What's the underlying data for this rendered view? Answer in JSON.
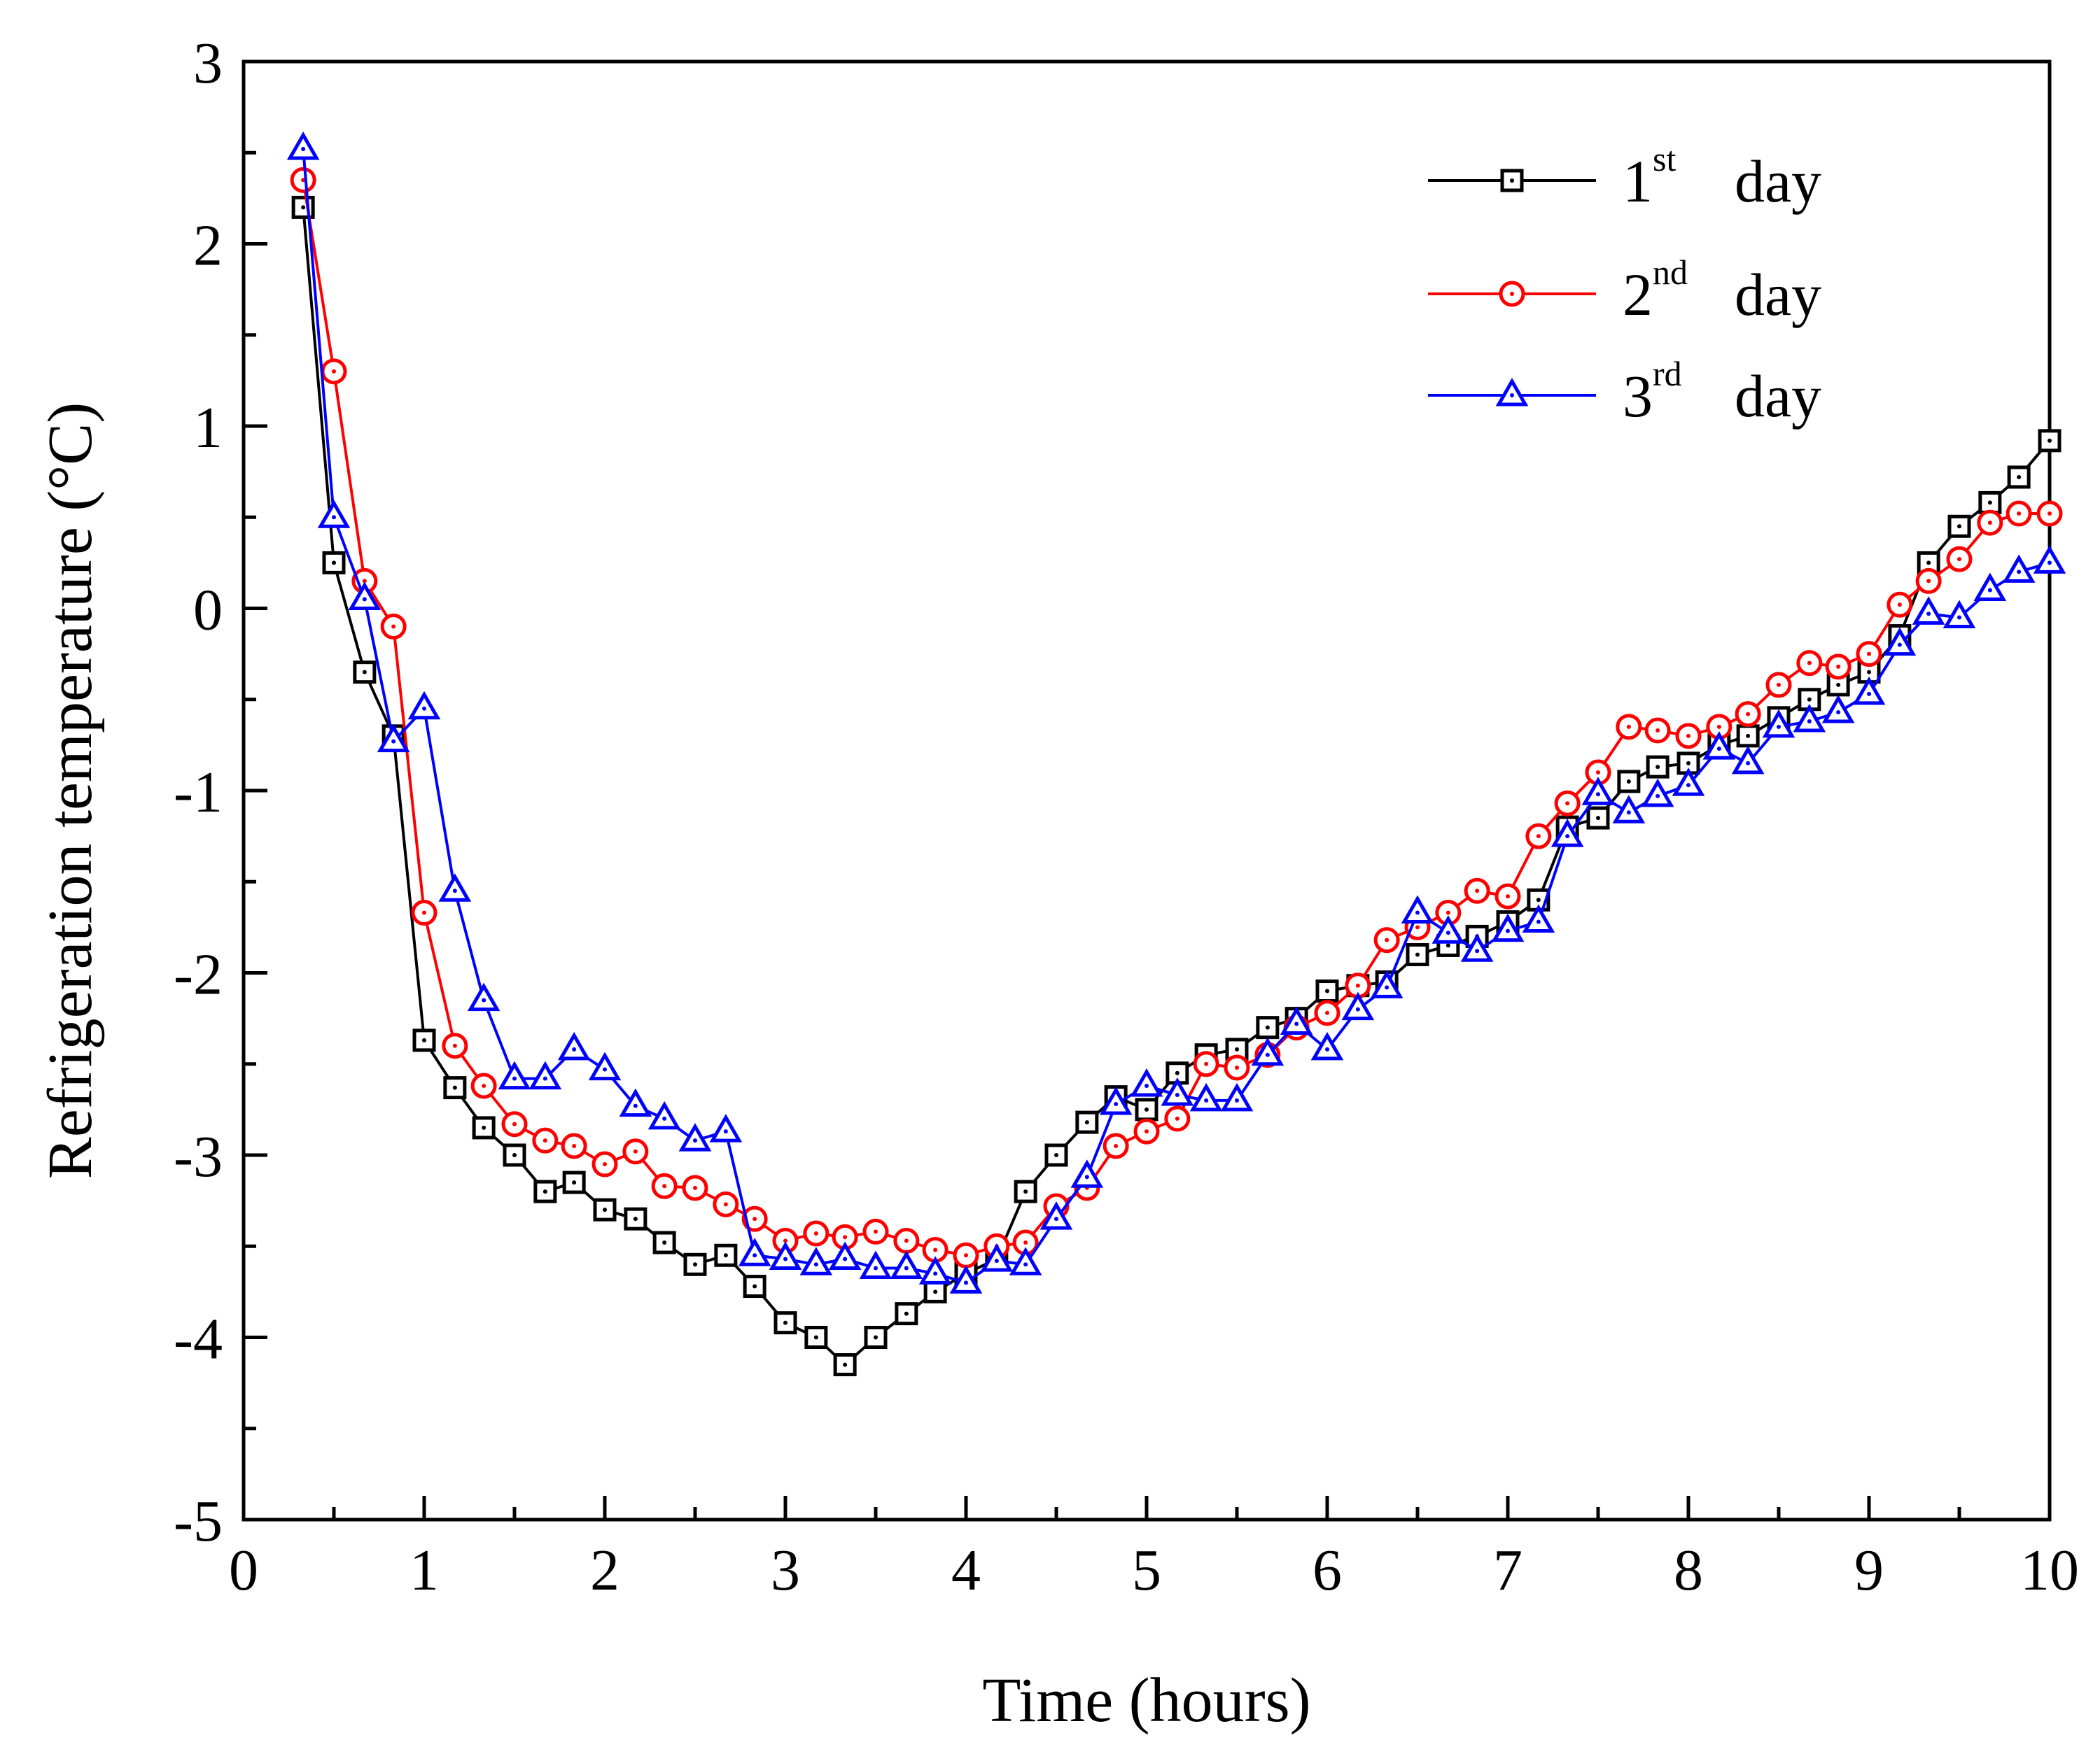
{
  "chart_data": {
    "type": "line",
    "title": "",
    "xlabel": "Time (hours)",
    "ylabel": "Refrigeration temperature (°C)",
    "xlim": [
      0,
      10
    ],
    "ylim": [
      -5,
      3
    ],
    "xticks": [
      "0",
      "1",
      "2",
      "3",
      "4",
      "5",
      "6",
      "7",
      "8",
      "9",
      "10"
    ],
    "yticks": [
      "3",
      "2",
      "1",
      "0",
      "-1",
      "-2",
      "-3",
      "-4",
      "-5"
    ],
    "grid": false,
    "legend_position": "top-right",
    "series": [
      {
        "name": "day",
        "sup_prefix": "1",
        "sup": "st",
        "color": "#000000",
        "marker": "square",
        "x": [
          0.33,
          0.5,
          0.67,
          0.83,
          1.0,
          1.17,
          1.33,
          1.5,
          1.67,
          1.83,
          2.0,
          2.17,
          2.33,
          2.5,
          2.67,
          2.83,
          3.0,
          3.17,
          3.33,
          3.5,
          3.67,
          3.83,
          4.0,
          4.17,
          4.33,
          4.5,
          4.67,
          4.83,
          5.0,
          5.17,
          5.33,
          5.5,
          5.67,
          5.83,
          6.0,
          6.17,
          6.33,
          6.5,
          6.67,
          6.83,
          7.0,
          7.17,
          7.33,
          7.5,
          7.67,
          7.83,
          8.0,
          8.17,
          8.33,
          8.5,
          8.67,
          8.83,
          9.0,
          9.17,
          9.33,
          9.5,
          9.67,
          9.83,
          10.0
        ],
        "y": [
          2.2,
          0.25,
          -0.35,
          -0.7,
          -2.37,
          -2.63,
          -2.85,
          -3.0,
          -3.2,
          -3.15,
          -3.3,
          -3.35,
          -3.48,
          -3.6,
          -3.55,
          -3.72,
          -3.92,
          -4.0,
          -4.15,
          -4.0,
          -3.87,
          -3.75,
          -3.65,
          -3.57,
          -3.2,
          -3.0,
          -2.82,
          -2.68,
          -2.75,
          -2.55,
          -2.45,
          -2.42,
          -2.3,
          -2.25,
          -2.1,
          -2.07,
          -2.05,
          -1.9,
          -1.85,
          -1.8,
          -1.72,
          -1.6,
          -1.2,
          -1.15,
          -0.95,
          -0.87,
          -0.85,
          -0.75,
          -0.7,
          -0.6,
          -0.5,
          -0.42,
          -0.35,
          -0.15,
          0.25,
          0.45,
          0.58,
          0.72,
          0.92
        ]
      },
      {
        "name": "day",
        "sup_prefix": "2",
        "sup": "nd",
        "color": "#ff0000",
        "marker": "circle",
        "x": [
          0.33,
          0.5,
          0.67,
          0.83,
          1.0,
          1.17,
          1.33,
          1.5,
          1.67,
          1.83,
          2.0,
          2.17,
          2.33,
          2.5,
          2.67,
          2.83,
          3.0,
          3.17,
          3.33,
          3.5,
          3.67,
          3.83,
          4.0,
          4.17,
          4.33,
          4.5,
          4.67,
          4.83,
          5.0,
          5.17,
          5.33,
          5.5,
          5.67,
          5.83,
          6.0,
          6.17,
          6.33,
          6.5,
          6.67,
          6.83,
          7.0,
          7.17,
          7.33,
          7.5,
          7.67,
          7.83,
          8.0,
          8.17,
          8.33,
          8.5,
          8.67,
          8.83,
          9.0,
          9.17,
          9.33,
          9.5,
          9.67,
          9.83,
          10.0
        ],
        "y": [
          2.35,
          1.3,
          0.15,
          -0.1,
          -1.67,
          -2.4,
          -2.62,
          -2.83,
          -2.92,
          -2.95,
          -3.05,
          -2.98,
          -3.17,
          -3.18,
          -3.27,
          -3.35,
          -3.47,
          -3.43,
          -3.45,
          -3.42,
          -3.47,
          -3.52,
          -3.55,
          -3.5,
          -3.48,
          -3.28,
          -3.18,
          -2.95,
          -2.87,
          -2.8,
          -2.5,
          -2.52,
          -2.45,
          -2.3,
          -2.22,
          -2.07,
          -1.82,
          -1.75,
          -1.67,
          -1.55,
          -1.58,
          -1.25,
          -1.07,
          -0.9,
          -0.65,
          -0.67,
          -0.7,
          -0.65,
          -0.58,
          -0.42,
          -0.3,
          -0.32,
          -0.25,
          0.02,
          0.15,
          0.27,
          0.47,
          0.52,
          0.52
        ]
      },
      {
        "name": "day",
        "sup_prefix": "3",
        "sup": "rd",
        "color": "#0000ff",
        "marker": "triangle",
        "x": [
          0.33,
          0.5,
          0.67,
          0.83,
          1.0,
          1.17,
          1.33,
          1.5,
          1.67,
          1.83,
          2.0,
          2.17,
          2.33,
          2.5,
          2.67,
          2.83,
          3.0,
          3.17,
          3.33,
          3.5,
          3.67,
          3.83,
          4.0,
          4.17,
          4.33,
          4.5,
          4.67,
          4.83,
          5.0,
          5.17,
          5.33,
          5.5,
          5.67,
          5.83,
          6.0,
          6.17,
          6.33,
          6.5,
          6.67,
          6.83,
          7.0,
          7.17,
          7.33,
          7.5,
          7.67,
          7.83,
          8.0,
          8.17,
          8.33,
          8.5,
          8.67,
          8.83,
          9.0,
          9.17,
          9.33,
          9.5,
          9.67,
          9.83,
          10.0
        ],
        "y": [
          2.52,
          0.5,
          0.05,
          -0.73,
          -0.55,
          -1.55,
          -2.15,
          -2.58,
          -2.58,
          -2.42,
          -2.53,
          -2.73,
          -2.8,
          -2.92,
          -2.87,
          -3.55,
          -3.57,
          -3.6,
          -3.57,
          -3.62,
          -3.62,
          -3.65,
          -3.7,
          -3.58,
          -3.6,
          -3.35,
          -3.12,
          -2.72,
          -2.62,
          -2.67,
          -2.7,
          -2.7,
          -2.45,
          -2.28,
          -2.42,
          -2.2,
          -2.08,
          -1.67,
          -1.78,
          -1.88,
          -1.77,
          -1.72,
          -1.25,
          -1.02,
          -1.12,
          -1.03,
          -0.97,
          -0.77,
          -0.85,
          -0.65,
          -0.62,
          -0.57,
          -0.47,
          -0.2,
          -0.03,
          -0.05,
          0.1,
          0.2,
          0.25
        ]
      }
    ]
  }
}
